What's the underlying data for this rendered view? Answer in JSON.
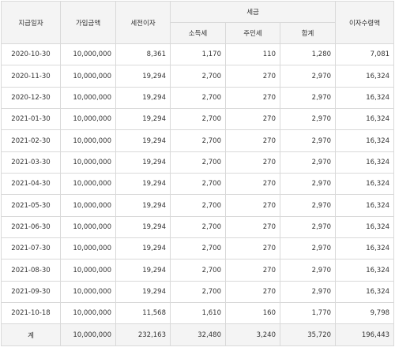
{
  "headers": {
    "pay_date": "지급일자",
    "principal": "가입금액",
    "pretax_interest": "세전이자",
    "tax_group": "세금",
    "income_tax": "소득세",
    "resident_tax": "주민세",
    "tax_total": "합계",
    "interest_received": "이자수령액"
  },
  "rows": [
    {
      "date": "2020-10-30",
      "principal": "10,000,000",
      "pretax": "8,361",
      "income_tax": "1,170",
      "resident_tax": "110",
      "tax_total": "1,280",
      "received": "7,081"
    },
    {
      "date": "2020-11-30",
      "principal": "10,000,000",
      "pretax": "19,294",
      "income_tax": "2,700",
      "resident_tax": "270",
      "tax_total": "2,970",
      "received": "16,324"
    },
    {
      "date": "2020-12-30",
      "principal": "10,000,000",
      "pretax": "19,294",
      "income_tax": "2,700",
      "resident_tax": "270",
      "tax_total": "2,970",
      "received": "16,324"
    },
    {
      "date": "2021-01-30",
      "principal": "10,000,000",
      "pretax": "19,294",
      "income_tax": "2,700",
      "resident_tax": "270",
      "tax_total": "2,970",
      "received": "16,324"
    },
    {
      "date": "2021-02-30",
      "principal": "10,000,000",
      "pretax": "19,294",
      "income_tax": "2,700",
      "resident_tax": "270",
      "tax_total": "2,970",
      "received": "16,324"
    },
    {
      "date": "2021-03-30",
      "principal": "10,000,000",
      "pretax": "19,294",
      "income_tax": "2,700",
      "resident_tax": "270",
      "tax_total": "2,970",
      "received": "16,324"
    },
    {
      "date": "2021-04-30",
      "principal": "10,000,000",
      "pretax": "19,294",
      "income_tax": "2,700",
      "resident_tax": "270",
      "tax_total": "2,970",
      "received": "16,324"
    },
    {
      "date": "2021-05-30",
      "principal": "10,000,000",
      "pretax": "19,294",
      "income_tax": "2,700",
      "resident_tax": "270",
      "tax_total": "2,970",
      "received": "16,324"
    },
    {
      "date": "2021-06-30",
      "principal": "10,000,000",
      "pretax": "19,294",
      "income_tax": "2,700",
      "resident_tax": "270",
      "tax_total": "2,970",
      "received": "16,324"
    },
    {
      "date": "2021-07-30",
      "principal": "10,000,000",
      "pretax": "19,294",
      "income_tax": "2,700",
      "resident_tax": "270",
      "tax_total": "2,970",
      "received": "16,324"
    },
    {
      "date": "2021-08-30",
      "principal": "10,000,000",
      "pretax": "19,294",
      "income_tax": "2,700",
      "resident_tax": "270",
      "tax_total": "2,970",
      "received": "16,324"
    },
    {
      "date": "2021-09-30",
      "principal": "10,000,000",
      "pretax": "19,294",
      "income_tax": "2,700",
      "resident_tax": "270",
      "tax_total": "2,970",
      "received": "16,324"
    },
    {
      "date": "2021-10-18",
      "principal": "10,000,000",
      "pretax": "11,568",
      "income_tax": "1,610",
      "resident_tax": "160",
      "tax_total": "1,770",
      "received": "9,798"
    }
  ],
  "totals": {
    "label": "계",
    "principal": "10,000,000",
    "pretax": "232,163",
    "income_tax": "32,480",
    "resident_tax": "3,240",
    "tax_total": "35,720",
    "received": "196,443"
  }
}
